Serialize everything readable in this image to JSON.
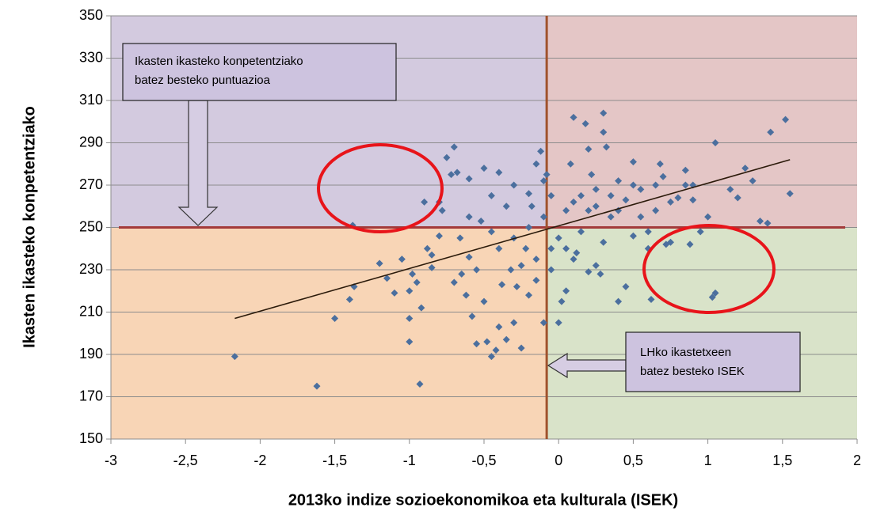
{
  "chart_data": {
    "type": "scatter",
    "x_label": "2013ko indize sozioekonomikoa eta kulturala (ISEK)",
    "y_label": "Ikasten ikasteko konpetentziako",
    "xlim": [
      -3,
      2
    ],
    "ylim": [
      150,
      350
    ],
    "xticks": [
      -3,
      {
        "value": -2.5,
        "label": "-2,5"
      },
      -2,
      {
        "value": -1.5,
        "label": "-1,5"
      },
      -1,
      {
        "value": -0.5,
        "label": "-0,5"
      },
      0,
      {
        "value": 0.5,
        "label": "0,5"
      },
      1,
      {
        "value": 1.5,
        "label": "1,5"
      },
      2
    ],
    "yticks": [
      150,
      170,
      190,
      210,
      230,
      250,
      270,
      290,
      310,
      330,
      350
    ],
    "grid": true,
    "color": "#4b6f9e",
    "x": [
      -2.17,
      -1.62,
      -0.93,
      -1.5,
      -1.4,
      -1.37,
      -1.38,
      -1.2,
      -1.1,
      -1.05,
      -1.0,
      -1.0,
      -1.0,
      -0.98,
      -0.95,
      -0.92,
      -0.9,
      -0.88,
      -0.85,
      -0.8,
      -0.8,
      -0.78,
      -0.75,
      -0.72,
      -0.7,
      -0.68,
      -0.66,
      -0.62,
      -0.6,
      -0.58,
      -0.55,
      -0.52,
      -0.5,
      -0.48,
      -0.45,
      -0.42,
      -0.4,
      -0.35,
      -0.3,
      -0.25,
      -0.2,
      -0.18,
      -0.15,
      -0.12,
      -0.1,
      -0.15,
      -0.2,
      -0.1,
      -0.05,
      0.0,
      0.0,
      0.02,
      0.05,
      0.1,
      0.1,
      0.15,
      0.18,
      0.2,
      0.22,
      0.25,
      0.25,
      0.28,
      0.3,
      0.3,
      0.32,
      0.35,
      0.4,
      0.4,
      0.45,
      0.5,
      0.5,
      0.55,
      0.6,
      0.62,
      0.65,
      0.68,
      0.72,
      0.75,
      0.8,
      0.85,
      0.88,
      0.9,
      0.95,
      1.0,
      1.03,
      1.05,
      1.05,
      1.15,
      1.2,
      1.25,
      1.3,
      1.35,
      1.4,
      1.42,
      1.52,
      1.55,
      0.9,
      0.7,
      -0.3,
      -0.35,
      -0.4,
      -0.45,
      -0.25,
      -0.22,
      -0.28,
      -0.32,
      -0.38,
      -0.5,
      -0.55,
      -0.6,
      -0.65,
      -0.45,
      -0.3,
      -0.2,
      -0.1,
      -0.05,
      0.05,
      0.1,
      0.15,
      0.2,
      0.35,
      0.45,
      0.55,
      0.6,
      -1.15,
      -0.85,
      -0.7,
      -0.6,
      -0.4,
      0.12,
      0.2,
      0.3,
      -0.08,
      0.08,
      0.25,
      0.4,
      0.5,
      0.65,
      0.75,
      0.85,
      -0.15,
      -0.05,
      0.05
    ],
    "values": [
      189,
      175,
      176,
      207,
      216,
      222,
      251,
      233,
      219,
      235,
      220,
      196,
      207,
      228,
      224,
      212,
      262,
      240,
      237,
      262,
      246,
      258,
      283,
      275,
      288,
      276,
      245,
      218,
      236,
      208,
      195,
      253,
      278,
      196,
      189,
      192,
      203,
      197,
      205,
      193,
      250,
      260,
      280,
      286,
      272,
      225,
      218,
      205,
      265,
      245,
      205,
      215,
      240,
      235,
      302,
      265,
      299,
      287,
      275,
      260,
      232,
      228,
      304,
      295,
      288,
      265,
      215,
      272,
      222,
      281,
      246,
      268,
      240,
      216,
      270,
      280,
      242,
      243,
      264,
      277,
      242,
      263,
      248,
      255,
      217,
      290,
      219,
      268,
      264,
      278,
      272,
      253,
      252,
      295,
      301,
      266,
      270,
      274,
      245,
      260,
      240,
      265,
      232,
      240,
      222,
      230,
      223,
      215,
      230,
      255,
      228,
      248,
      270,
      266,
      255,
      240,
      258,
      262,
      248,
      258,
      255,
      263,
      255,
      248,
      226,
      231,
      224,
      273,
      276,
      238,
      229,
      243,
      275,
      280,
      268,
      258,
      270,
      258,
      262,
      270,
      235,
      230,
      220
    ],
    "trendline": {
      "x": [
        -2.17,
        1.55
      ],
      "y": [
        207,
        282
      ]
    },
    "reference_lines": {
      "x": -0.08,
      "y": 250
    },
    "annotations": [
      {
        "lines": [
          "Ikasten ikasteko konpetentziako",
          "batez besteko puntuazioa"
        ]
      },
      {
        "lines": [
          "LHko ikastetxeen",
          "batez besteko ISEK"
        ]
      }
    ]
  }
}
